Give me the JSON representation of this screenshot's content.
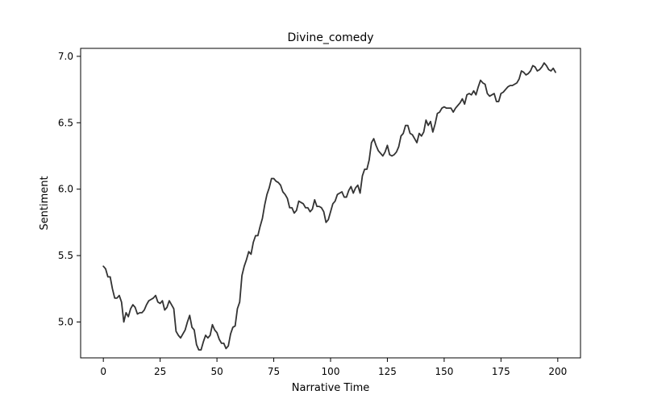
{
  "chart_data": {
    "type": "line",
    "title": "Divine_comedy",
    "xlabel": "Narrative Time",
    "ylabel": "Sentiment",
    "xlim": [
      -10,
      210
    ],
    "ylim": [
      4.73,
      7.06
    ],
    "x_ticks": [
      0,
      25,
      50,
      75,
      100,
      125,
      150,
      175,
      200
    ],
    "y_ticks": [
      5.0,
      5.5,
      6.0,
      6.5,
      7.0
    ],
    "x_tick_labels": [
      "0",
      "25",
      "50",
      "75",
      "100",
      "125",
      "150",
      "175",
      "200"
    ],
    "y_tick_labels": [
      "5.0",
      "5.5",
      "6.0",
      "6.5",
      "7.0"
    ],
    "grid": false,
    "line_color": "#333333",
    "series": [
      {
        "values": [
          5.42,
          5.4,
          5.34,
          5.34,
          5.25,
          5.18,
          5.18,
          5.2,
          5.15,
          5.0,
          5.07,
          5.04,
          5.1,
          5.13,
          5.11,
          5.06,
          5.07,
          5.07,
          5.09,
          5.13,
          5.16,
          5.17,
          5.18,
          5.2,
          5.15,
          5.14,
          5.16,
          5.09,
          5.11,
          5.16,
          5.13,
          5.1,
          4.93,
          4.9,
          4.88,
          4.91,
          4.94,
          5.0,
          5.05,
          4.96,
          4.94,
          4.83,
          4.79,
          4.79,
          4.85,
          4.9,
          4.88,
          4.9,
          4.98,
          4.94,
          4.92,
          4.87,
          4.84,
          4.84,
          4.8,
          4.82,
          4.91,
          4.96,
          4.97,
          5.1,
          5.15,
          5.35,
          5.42,
          5.47,
          5.53,
          5.51,
          5.6,
          5.65,
          5.65,
          5.72,
          5.78,
          5.88,
          5.96,
          6.01,
          6.08,
          6.08,
          6.06,
          6.05,
          6.03,
          5.98,
          5.96,
          5.93,
          5.86,
          5.86,
          5.82,
          5.84,
          5.91,
          5.9,
          5.89,
          5.86,
          5.86,
          5.83,
          5.85,
          5.92,
          5.87,
          5.87,
          5.86,
          5.83,
          5.75,
          5.77,
          5.83,
          5.89,
          5.91,
          5.96,
          5.97,
          5.98,
          5.94,
          5.94,
          5.99,
          6.02,
          5.97,
          6.01,
          6.03,
          5.97,
          6.1,
          6.15,
          6.15,
          6.22,
          6.35,
          6.38,
          6.33,
          6.29,
          6.27,
          6.25,
          6.28,
          6.33,
          6.26,
          6.25,
          6.26,
          6.28,
          6.32,
          6.4,
          6.42,
          6.48,
          6.48,
          6.42,
          6.41,
          6.38,
          6.35,
          6.42,
          6.4,
          6.43,
          6.52,
          6.48,
          6.51,
          6.43,
          6.49,
          6.57,
          6.58,
          6.61,
          6.62,
          6.61,
          6.61,
          6.61,
          6.58,
          6.61,
          6.63,
          6.65,
          6.68,
          6.64,
          6.71,
          6.72,
          6.71,
          6.74,
          6.71,
          6.77,
          6.82,
          6.8,
          6.79,
          6.72,
          6.7,
          6.71,
          6.72,
          6.66,
          6.66,
          6.72,
          6.73,
          6.75,
          6.77,
          6.78,
          6.78,
          6.79,
          6.8,
          6.83,
          6.89,
          6.88,
          6.86,
          6.87,
          6.89,
          6.93,
          6.92,
          6.89,
          6.9,
          6.92,
          6.95,
          6.93,
          6.9,
          6.89,
          6.91,
          6.88
        ]
      }
    ]
  }
}
